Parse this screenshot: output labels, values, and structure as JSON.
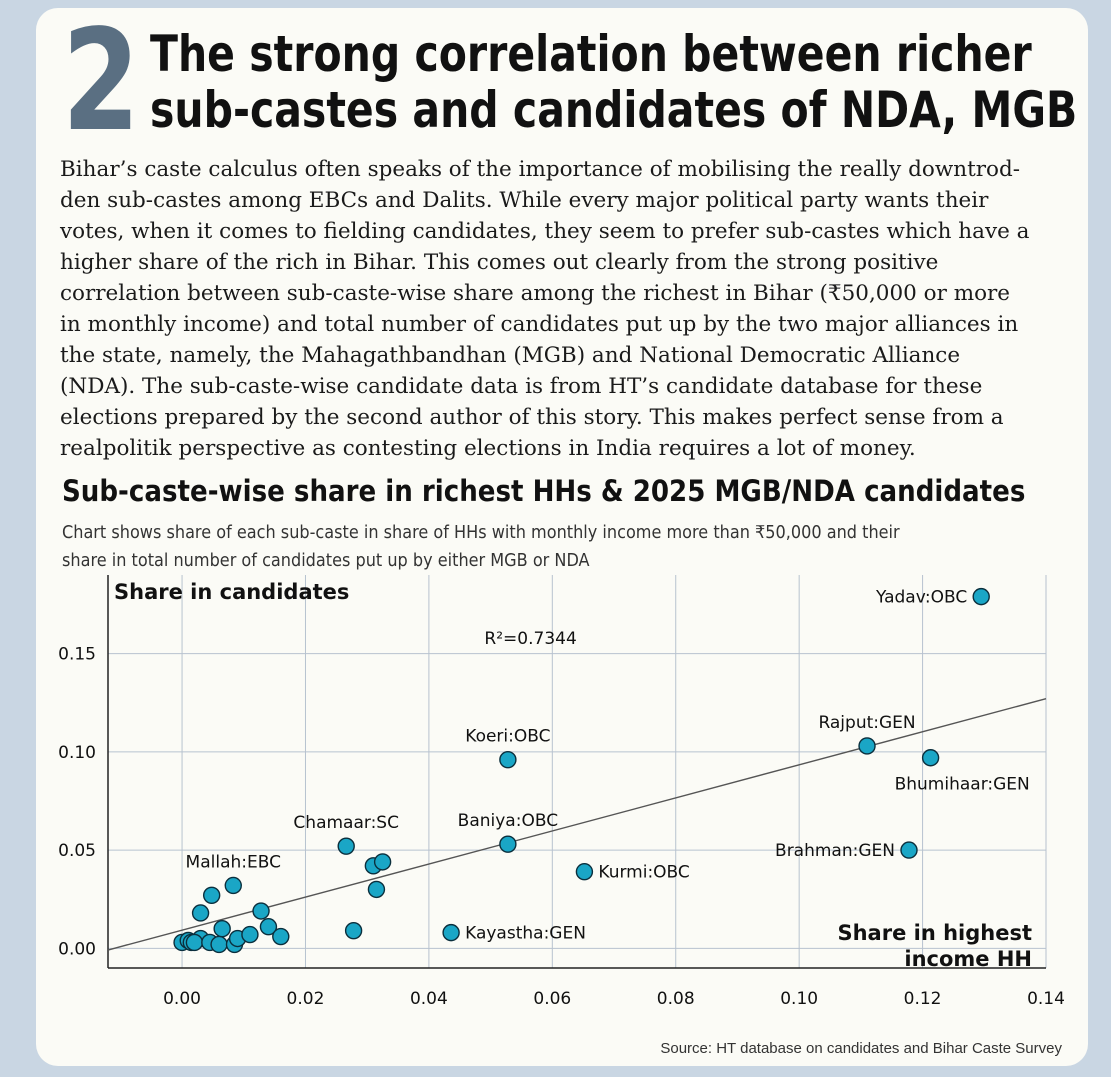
{
  "header": {
    "number": "2",
    "headline_lines": [
      "The strong correlation between richer",
      "sub-castes and candidates of NDA, MGB"
    ]
  },
  "body": {
    "lines": [
      "Bihar’s caste calculus often speaks of the importance of mobilising the really downtrod-",
      "den sub-castes among EBCs and Dalits. While every major political party wants their",
      "votes, when it comes to fielding candidates, they seem to prefer sub-castes which have a",
      "higher share of the rich in Bihar. This comes out clearly from the strong positive",
      "correlation between sub-caste-wise share among the richest in Bihar (₹50,000 or more",
      "in monthly income) and total number of candidates put up by the two major alliances in",
      "the state, namely, the Mahagathbandhan (MGB) and National Democratic Alliance",
      "(NDA). The sub-caste-wise candidate data is from HT’s candidate database for these",
      "elections prepared by the second author of this story. This makes perfect sense from a",
      "realpolitik perspective as contesting elections in India requires a lot of money."
    ]
  },
  "chart_data": {
    "type": "scatter",
    "title": "Sub-caste-wise share in richest HHs & 2025 MGB/NDA candidates",
    "subtitle_lines": [
      "Chart shows share of each sub-caste in share of HHs with monthly income more than ₹50,000 and their",
      "share in total number of candidates put up by either MGB or NDA"
    ],
    "ylabel": "Share in candidates",
    "xlabel_lines": [
      "Share in highest",
      "income HH"
    ],
    "xlim": [
      -0.012,
      0.14
    ],
    "ylim": [
      -0.01,
      0.19
    ],
    "xticks": [
      0.0,
      0.02,
      0.04,
      0.06,
      0.08,
      0.1,
      0.12,
      0.14
    ],
    "xtick_labels": [
      "0.00",
      "0.02",
      "0.04",
      "0.06",
      "0.08",
      "0.10",
      "0.12",
      "0.14"
    ],
    "yticks": [
      0.0,
      0.05,
      0.1,
      0.15
    ],
    "ytick_labels": [
      "0.00",
      "0.05",
      "0.10",
      "0.15"
    ],
    "annotation": "R²=0.7344",
    "trendline": {
      "slope": 0.8415,
      "intercept": 0.00925
    },
    "labeled_points": [
      {
        "label": "Yadav:OBC",
        "x": 0.1295,
        "y": 0.179,
        "anchor": "left"
      },
      {
        "label": "Rajput:GEN",
        "x": 0.111,
        "y": 0.103,
        "anchor": "above"
      },
      {
        "label": "Bhumihaar:GEN",
        "x": 0.1213,
        "y": 0.097,
        "anchor": "below"
      },
      {
        "label": "Brahman:GEN",
        "x": 0.1178,
        "y": 0.05,
        "anchor": "left"
      },
      {
        "label": "Koeri:OBC",
        "x": 0.0528,
        "y": 0.096,
        "anchor": "above"
      },
      {
        "label": "Baniya:OBC",
        "x": 0.0528,
        "y": 0.053,
        "anchor": "above"
      },
      {
        "label": "Kurmi:OBC",
        "x": 0.0652,
        "y": 0.039,
        "anchor": "right"
      },
      {
        "label": "Kayastha:GEN",
        "x": 0.0436,
        "y": 0.008,
        "anchor": "right"
      },
      {
        "label": "Chamaar:SC",
        "x": 0.0266,
        "y": 0.052,
        "anchor": "above"
      },
      {
        "label": "Mallah:EBC",
        "x": 0.0083,
        "y": 0.032,
        "anchor": "above"
      }
    ],
    "unlabeled_points": [
      {
        "x": 0.0,
        "y": 0.003
      },
      {
        "x": 0.001,
        "y": 0.004
      },
      {
        "x": 0.0015,
        "y": 0.003
      },
      {
        "x": 0.003,
        "y": 0.005
      },
      {
        "x": 0.002,
        "y": 0.003
      },
      {
        "x": 0.0045,
        "y": 0.003
      },
      {
        "x": 0.006,
        "y": 0.002
      },
      {
        "x": 0.0085,
        "y": 0.002
      },
      {
        "x": 0.009,
        "y": 0.005
      },
      {
        "x": 0.011,
        "y": 0.007
      },
      {
        "x": 0.0065,
        "y": 0.01
      },
      {
        "x": 0.003,
        "y": 0.018
      },
      {
        "x": 0.0048,
        "y": 0.027
      },
      {
        "x": 0.0128,
        "y": 0.019
      },
      {
        "x": 0.014,
        "y": 0.011
      },
      {
        "x": 0.016,
        "y": 0.006
      },
      {
        "x": 0.0278,
        "y": 0.009
      },
      {
        "x": 0.0315,
        "y": 0.03
      },
      {
        "x": 0.031,
        "y": 0.042
      },
      {
        "x": 0.0325,
        "y": 0.044
      }
    ]
  },
  "source": "Source: HT database on candidates and Bihar Caste Survey",
  "colors": {
    "dot": "#1aa6c6",
    "dot_stroke": "#0b2f3d",
    "grid": "#b7c2cf",
    "trend": "#555555",
    "bignum": "#5a6f82"
  }
}
